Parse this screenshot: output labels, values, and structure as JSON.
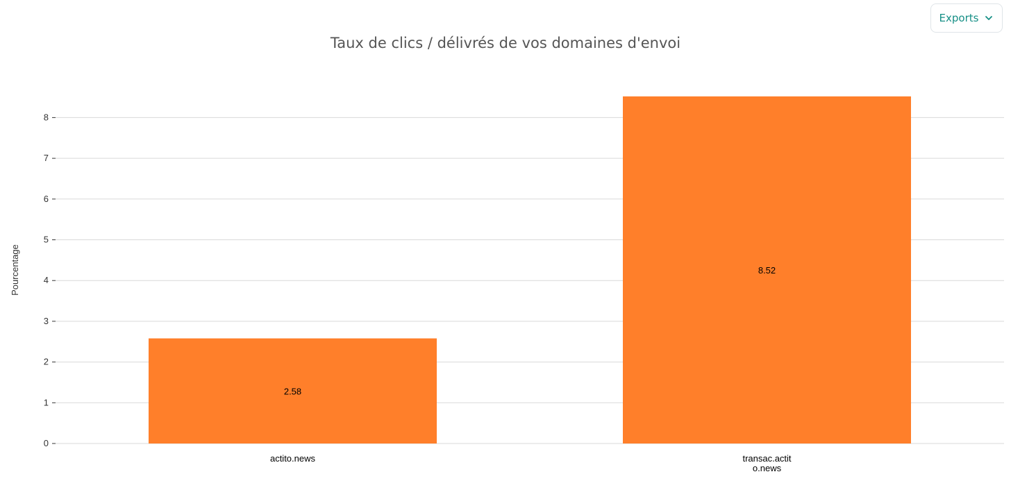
{
  "toolbar": {
    "exports_label": "Exports",
    "exports_icon": "chevron-down-icon",
    "accent_color": "#168f86"
  },
  "chart_data": {
    "type": "bar",
    "title": "Taux de clics / délivrés de vos domaines d'envoi",
    "categories": [
      [
        "actito.news"
      ],
      [
        "transac.actit",
        "o.news"
      ]
    ],
    "values": [
      2.58,
      8.52
    ],
    "data_labels": [
      "2.58",
      "8.52"
    ],
    "xlabel": "",
    "ylabel": "Pourcentage",
    "ylim": [
      0,
      8.5
    ],
    "yticks": [
      0,
      1,
      2,
      3,
      4,
      5,
      6,
      7,
      8
    ],
    "grid": true,
    "bar_color": "#ff7f2a"
  }
}
